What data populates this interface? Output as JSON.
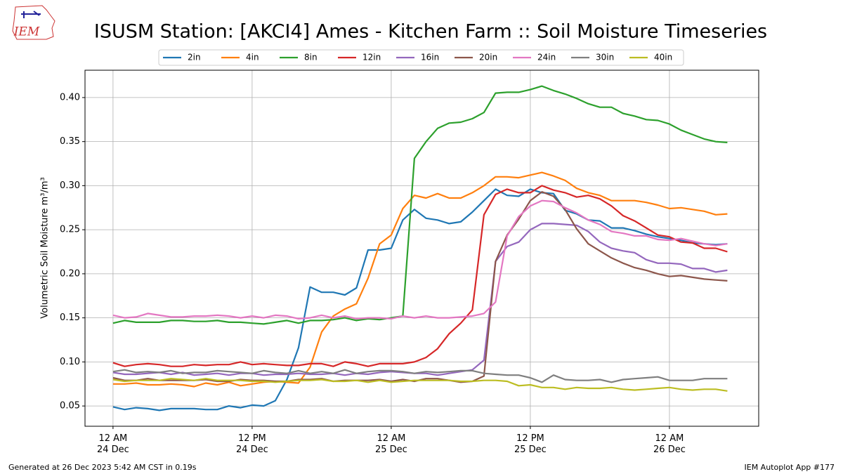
{
  "chart_data": {
    "type": "line",
    "title": "ISUSM Station: [AKCI4] Ames - Kitchen Farm :: Soil Moisture Timeseries",
    "ylabel": "Volumetric Soil Moisture m³/m³",
    "logo_text": "IEM",
    "footer_left": "Generated at 26 Dec 2023 5:42 AM CST in 0.19s",
    "footer_right": "IEM Autoplot App #177",
    "grid": true,
    "legend": "top",
    "xlim": [
      "23 Dec 21:35",
      "26 Dec 07:42"
    ],
    "xticks": [
      {
        "value": "24 Dec 00:00",
        "label": "12 AM\n24 Dec"
      },
      {
        "value": "24 Dec 12:00",
        "label": "12 PM\n24 Dec"
      },
      {
        "value": "25 Dec 00:00",
        "label": "12 AM\n25 Dec"
      },
      {
        "value": "25 Dec 12:00",
        "label": "12 PM\n25 Dec"
      },
      {
        "value": "26 Dec 00:00",
        "label": "12 AM\n26 Dec"
      }
    ],
    "ylim": [
      0.027,
      0.431
    ],
    "yticks": [
      0.05,
      {
        "value": 0.1,
        "label": "0.10"
      },
      0.15,
      {
        "value": 0.2,
        "label": "0.20"
      },
      0.25,
      {
        "value": 0.3,
        "label": "0.30"
      },
      0.35,
      {
        "value": 0.4,
        "label": "0.40"
      }
    ],
    "x": [
      "24 Dec 00:00",
      "24 Dec 01:00",
      "24 Dec 02:00",
      "24 Dec 03:00",
      "24 Dec 04:00",
      "24 Dec 05:00",
      "24 Dec 06:00",
      "24 Dec 07:00",
      "24 Dec 08:00",
      "24 Dec 09:00",
      "24 Dec 10:00",
      "24 Dec 11:00",
      "24 Dec 12:00",
      "24 Dec 13:00",
      "24 Dec 14:00",
      "24 Dec 15:00",
      "24 Dec 16:00",
      "24 Dec 17:00",
      "24 Dec 18:00",
      "24 Dec 19:00",
      "24 Dec 20:00",
      "24 Dec 21:00",
      "24 Dec 22:00",
      "24 Dec 23:00",
      "25 Dec 00:00",
      "25 Dec 01:00",
      "25 Dec 02:00",
      "25 Dec 03:00",
      "25 Dec 04:00",
      "25 Dec 05:00",
      "25 Dec 06:00",
      "25 Dec 07:00",
      "25 Dec 08:00",
      "25 Dec 09:00",
      "25 Dec 10:00",
      "25 Dec 11:00",
      "25 Dec 12:00",
      "25 Dec 13:00",
      "25 Dec 14:00",
      "25 Dec 15:00",
      "25 Dec 16:00",
      "25 Dec 17:00",
      "25 Dec 18:00",
      "25 Dec 19:00",
      "25 Dec 20:00",
      "25 Dec 21:00",
      "25 Dec 22:00",
      "25 Dec 23:00",
      "26 Dec 00:00",
      "26 Dec 01:00",
      "26 Dec 02:00",
      "26 Dec 03:00",
      "26 Dec 04:00",
      "26 Dec 05:00"
    ],
    "series": [
      {
        "name": "2in",
        "color": "#1f77b4",
        "values": [
          0.049,
          0.046,
          0.048,
          0.047,
          0.045,
          0.047,
          0.047,
          0.047,
          0.046,
          0.046,
          0.05,
          0.048,
          0.051,
          0.05,
          0.056,
          0.08,
          0.116,
          0.185,
          0.179,
          0.179,
          0.176,
          0.184,
          0.227,
          0.227,
          0.229,
          0.261,
          0.273,
          0.263,
          0.261,
          0.257,
          0.259,
          0.27,
          0.283,
          0.296,
          0.289,
          0.288,
          0.296,
          0.292,
          0.291,
          0.272,
          0.268,
          0.261,
          0.26,
          0.252,
          0.252,
          0.249,
          0.245,
          0.242,
          0.24,
          0.238,
          0.235,
          0.234,
          0.233,
          0.234
        ]
      },
      {
        "name": "4in",
        "color": "#ff7f0e",
        "values": [
          0.075,
          0.075,
          0.076,
          0.074,
          0.074,
          0.075,
          0.074,
          0.072,
          0.076,
          0.074,
          0.077,
          0.073,
          0.075,
          0.077,
          0.078,
          0.077,
          0.076,
          0.094,
          0.134,
          0.152,
          0.16,
          0.166,
          0.195,
          0.234,
          0.244,
          0.274,
          0.289,
          0.286,
          0.291,
          0.286,
          0.286,
          0.292,
          0.3,
          0.31,
          0.31,
          0.309,
          0.312,
          0.315,
          0.311,
          0.306,
          0.297,
          0.292,
          0.289,
          0.283,
          0.283,
          0.283,
          0.281,
          0.278,
          0.274,
          0.275,
          0.273,
          0.271,
          0.267,
          0.268
        ]
      },
      {
        "name": "8in",
        "color": "#2ca02c",
        "values": [
          0.144,
          0.147,
          0.145,
          0.145,
          0.145,
          0.147,
          0.147,
          0.146,
          0.146,
          0.147,
          0.145,
          0.145,
          0.144,
          0.143,
          0.145,
          0.147,
          0.144,
          0.147,
          0.147,
          0.148,
          0.15,
          0.147,
          0.149,
          0.148,
          0.15,
          0.152,
          0.331,
          0.35,
          0.365,
          0.371,
          0.372,
          0.376,
          0.383,
          0.405,
          0.406,
          0.406,
          0.409,
          0.413,
          0.408,
          0.404,
          0.399,
          0.393,
          0.389,
          0.389,
          0.382,
          0.379,
          0.375,
          0.374,
          0.37,
          0.363,
          0.358,
          0.353,
          0.35,
          0.349
        ]
      },
      {
        "name": "12in",
        "color": "#d62728",
        "values": [
          0.099,
          0.095,
          0.097,
          0.098,
          0.097,
          0.095,
          0.095,
          0.097,
          0.096,
          0.097,
          0.097,
          0.1,
          0.097,
          0.098,
          0.097,
          0.096,
          0.096,
          0.098,
          0.098,
          0.095,
          0.1,
          0.098,
          0.095,
          0.098,
          0.098,
          0.098,
          0.1,
          0.105,
          0.115,
          0.132,
          0.144,
          0.159,
          0.267,
          0.29,
          0.296,
          0.292,
          0.292,
          0.3,
          0.295,
          0.292,
          0.287,
          0.289,
          0.285,
          0.277,
          0.266,
          0.26,
          0.252,
          0.244,
          0.242,
          0.236,
          0.235,
          0.229,
          0.229,
          0.225
        ]
      },
      {
        "name": "16in",
        "color": "#9467bd",
        "values": [
          0.088,
          0.086,
          0.086,
          0.087,
          0.088,
          0.086,
          0.088,
          0.085,
          0.086,
          0.087,
          0.085,
          0.087,
          0.087,
          0.085,
          0.086,
          0.086,
          0.087,
          0.086,
          0.086,
          0.087,
          0.085,
          0.087,
          0.086,
          0.088,
          0.089,
          0.088,
          0.087,
          0.087,
          0.085,
          0.087,
          0.089,
          0.091,
          0.102,
          0.214,
          0.231,
          0.236,
          0.25,
          0.257,
          0.257,
          0.256,
          0.255,
          0.248,
          0.236,
          0.229,
          0.226,
          0.224,
          0.216,
          0.212,
          0.212,
          0.211,
          0.206,
          0.206,
          0.202,
          0.204
        ]
      },
      {
        "name": "20in",
        "color": "#8c564b",
        "values": [
          0.082,
          0.079,
          0.079,
          0.081,
          0.079,
          0.079,
          0.079,
          0.079,
          0.08,
          0.078,
          0.078,
          0.08,
          0.079,
          0.079,
          0.078,
          0.078,
          0.08,
          0.08,
          0.081,
          0.078,
          0.079,
          0.079,
          0.079,
          0.08,
          0.078,
          0.08,
          0.078,
          0.081,
          0.081,
          0.079,
          0.077,
          0.078,
          0.084,
          0.214,
          0.244,
          0.262,
          0.283,
          0.293,
          0.288,
          0.273,
          0.251,
          0.234,
          0.226,
          0.218,
          0.212,
          0.207,
          0.204,
          0.2,
          0.197,
          0.198,
          0.196,
          0.194,
          0.193,
          0.192
        ]
      },
      {
        "name": "24in",
        "color": "#e377c2",
        "values": [
          0.153,
          0.15,
          0.151,
          0.155,
          0.153,
          0.151,
          0.151,
          0.152,
          0.152,
          0.153,
          0.152,
          0.15,
          0.152,
          0.15,
          0.153,
          0.152,
          0.149,
          0.15,
          0.153,
          0.15,
          0.152,
          0.149,
          0.15,
          0.15,
          0.149,
          0.152,
          0.15,
          0.152,
          0.15,
          0.15,
          0.151,
          0.152,
          0.155,
          0.168,
          0.243,
          0.265,
          0.277,
          0.283,
          0.282,
          0.275,
          0.269,
          0.261,
          0.256,
          0.248,
          0.246,
          0.243,
          0.243,
          0.239,
          0.238,
          0.24,
          0.237,
          0.234,
          0.232,
          0.234
        ]
      },
      {
        "name": "30in",
        "color": "#7f7f7f",
        "values": [
          0.089,
          0.091,
          0.088,
          0.089,
          0.088,
          0.09,
          0.087,
          0.088,
          0.088,
          0.09,
          0.089,
          0.088,
          0.087,
          0.09,
          0.088,
          0.087,
          0.09,
          0.087,
          0.089,
          0.087,
          0.091,
          0.087,
          0.089,
          0.09,
          0.09,
          0.089,
          0.087,
          0.089,
          0.088,
          0.089,
          0.09,
          0.09,
          0.087,
          0.086,
          0.085,
          0.085,
          0.082,
          0.077,
          0.085,
          0.08,
          0.079,
          0.079,
          0.08,
          0.077,
          0.08,
          0.081,
          0.082,
          0.083,
          0.079,
          0.079,
          0.079,
          0.081,
          0.081,
          0.081
        ]
      },
      {
        "name": "40in",
        "color": "#bcbd22",
        "values": [
          0.08,
          0.078,
          0.079,
          0.079,
          0.079,
          0.081,
          0.08,
          0.079,
          0.081,
          0.079,
          0.079,
          0.079,
          0.078,
          0.078,
          0.077,
          0.078,
          0.079,
          0.079,
          0.08,
          0.078,
          0.078,
          0.079,
          0.077,
          0.079,
          0.077,
          0.078,
          0.079,
          0.079,
          0.079,
          0.079,
          0.078,
          0.078,
          0.079,
          0.079,
          0.078,
          0.073,
          0.074,
          0.071,
          0.071,
          0.069,
          0.071,
          0.07,
          0.07,
          0.071,
          0.069,
          0.068,
          0.069,
          0.07,
          0.071,
          0.069,
          0.068,
          0.069,
          0.069,
          0.067
        ]
      }
    ]
  }
}
